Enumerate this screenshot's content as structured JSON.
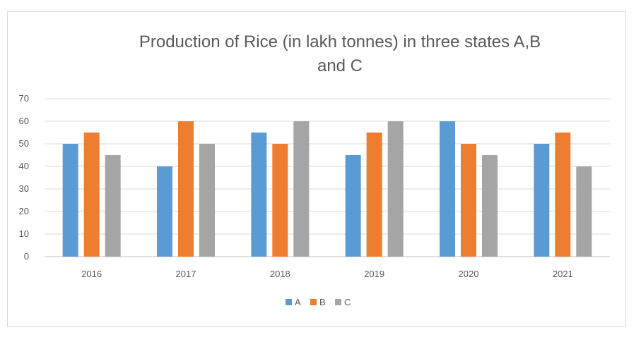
{
  "chart_data": {
    "type": "bar",
    "title": "Production of Rice (in lakh tonnes) in three states A,B and C",
    "title_lines": [
      "Production of Rice (in lakh tonnes) in three states A,B",
      "and C"
    ],
    "categories": [
      "2016",
      "2017",
      "2018",
      "2019",
      "2020",
      "2021"
    ],
    "series": [
      {
        "name": "A",
        "color": "#5b9bd5",
        "values": [
          50,
          40,
          55,
          45,
          60,
          50
        ]
      },
      {
        "name": "B",
        "color": "#ed7d31",
        "values": [
          55,
          60,
          50,
          55,
          50,
          55
        ]
      },
      {
        "name": "C",
        "color": "#a5a5a5",
        "values": [
          45,
          50,
          60,
          60,
          45,
          40
        ]
      }
    ],
    "y_ticks": [
      "0",
      "10",
      "20",
      "30",
      "40",
      "50",
      "60",
      "70"
    ],
    "ylim": [
      0,
      70
    ],
    "xlabel": "",
    "ylabel": "",
    "grid": true,
    "legend_position": "bottom"
  }
}
